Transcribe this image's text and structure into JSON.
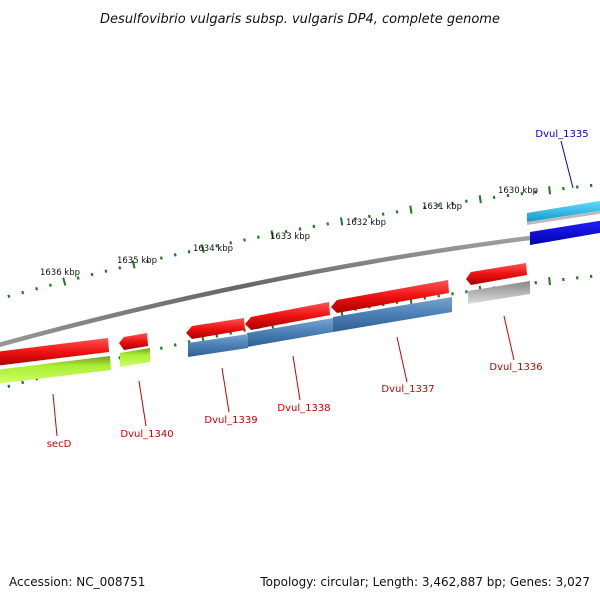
{
  "title": "Desulfovibrio vulgaris subsp. vulgaris DP4, complete genome",
  "footer": {
    "accession": "Accession: NC_008751",
    "summary": "Topology: circular; Length: 3,462,887 bp; Genes: 3,027"
  },
  "ruler": [
    {
      "label": "1630 kbp"
    },
    {
      "label": "1631 kbp"
    },
    {
      "label": "1632 kbp"
    },
    {
      "label": "1633 kbp"
    },
    {
      "label": "1634 kbp"
    },
    {
      "label": "1635 kbp"
    },
    {
      "label": "1636 kbp"
    }
  ],
  "genes": [
    {
      "name": "Dvul_1335",
      "color": "#0000cc"
    },
    {
      "name": "Dvul_1336",
      "color": "#cc0000"
    },
    {
      "name": "Dvul_1337",
      "color": "#cc0000"
    },
    {
      "name": "Dvul_1338",
      "color": "#cc0000"
    },
    {
      "name": "Dvul_1339",
      "color": "#cc0000"
    },
    {
      "name": "Dvul_1340",
      "color": "#cc0000"
    },
    {
      "name": "secD",
      "color": "#cc0000"
    }
  ],
  "colors": {
    "cds_feature": "#ee1111",
    "trna_feature": "#22bbee",
    "blue_feature": "#1111dd",
    "gene_feature": "#4a7fb5",
    "green_feature": "#99dd22",
    "grey_feature": "#a8a8a8",
    "backbone": "#808080",
    "ticks": "#1f7a1f"
  }
}
